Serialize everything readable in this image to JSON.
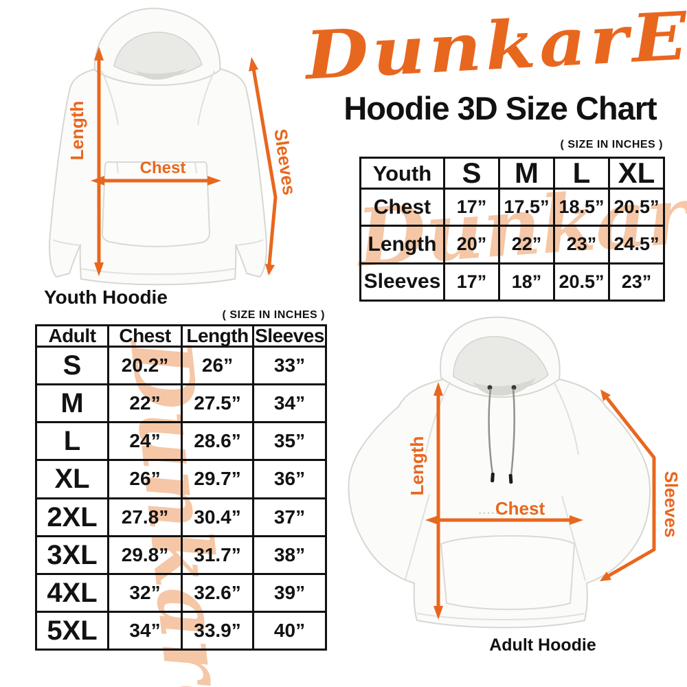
{
  "colors": {
    "accent_orange": "#E8671E",
    "watermark_peach": "#F5C7A6",
    "ink": "#111111"
  },
  "logo": {
    "text": "DunkarE"
  },
  "title": {
    "text": "Hoodie 3D Size Chart"
  },
  "watermark": {
    "text": "Dunkare"
  },
  "youth_diagram": {
    "caption": "Youth Hoodie",
    "length_label": "Length",
    "chest_label": "Chest",
    "sleeves_label": "Sleeves"
  },
  "adult_diagram": {
    "caption": "Adult Hoodie",
    "length_label": "Length",
    "chest_label": "Chest",
    "chest_dots": ".....",
    "sleeves_label": "Sleeves"
  },
  "chart_data": [
    {
      "type": "table",
      "name": "youth_sizes",
      "size_note": "( SIZE IN INCHES )",
      "unit": "inches",
      "columns": [
        "Youth",
        "S",
        "M",
        "L",
        "XL"
      ],
      "rows": [
        [
          "Chest",
          "17”",
          "17.5”",
          "18.5”",
          "20.5”"
        ],
        [
          "Length",
          "20”",
          "22”",
          "23”",
          "24.5”"
        ],
        [
          "Sleeves",
          "17”",
          "18”",
          "20.5”",
          "23”"
        ]
      ]
    },
    {
      "type": "table",
      "name": "adult_sizes",
      "size_note": "( SIZE IN INCHES )",
      "unit": "inches",
      "columns": [
        "Adult",
        "Chest",
        "Length",
        "Sleeves"
      ],
      "rows": [
        [
          "S",
          "20.2”",
          "26”",
          "33”"
        ],
        [
          "M",
          "22”",
          "27.5”",
          "34”"
        ],
        [
          "L",
          "24”",
          "28.6”",
          "35”"
        ],
        [
          "XL",
          "26”",
          "29.7”",
          "36”"
        ],
        [
          "2XL",
          "27.8”",
          "30.4”",
          "37”"
        ],
        [
          "3XL",
          "29.8”",
          "31.7”",
          "38”"
        ],
        [
          "4XL",
          "32”",
          "32.6”",
          "39”"
        ],
        [
          "5XL",
          "34”",
          "33.9”",
          "40”"
        ]
      ]
    }
  ]
}
